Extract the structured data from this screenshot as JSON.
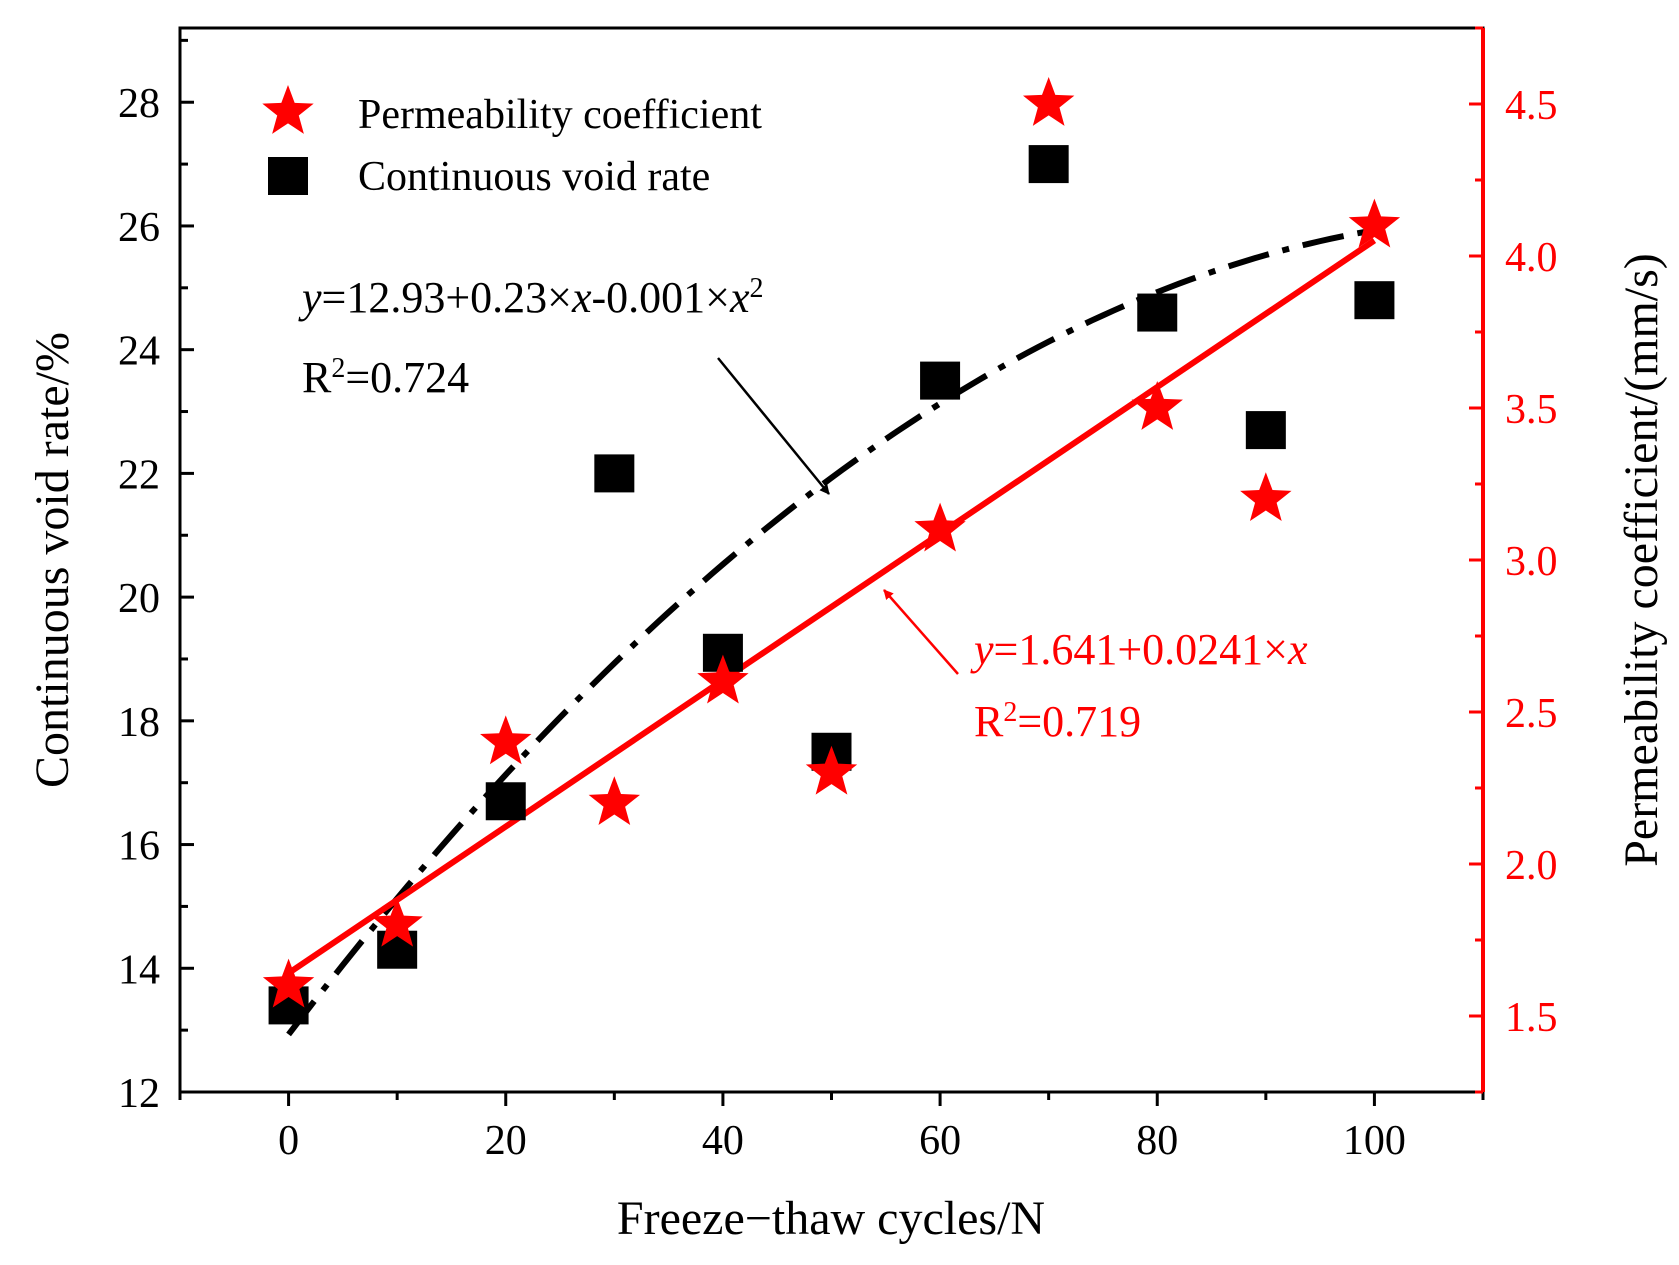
{
  "chart_data": {
    "type": "scatter",
    "xlabel": "Freeze−thaw cycles/N",
    "ylabel_left": "Continuous void rate/%",
    "ylabel_right": "Permeability coefficient/(mm/s)",
    "xlim": [
      -10,
      110
    ],
    "ylim_left": [
      12,
      29.2
    ],
    "ylim_right": [
      1.25,
      4.75
    ],
    "x_ticks": [
      0,
      20,
      40,
      60,
      80,
      100
    ],
    "y_left_ticks": [
      12,
      14,
      16,
      18,
      20,
      22,
      24,
      26,
      28
    ],
    "y_right_ticks": [
      "1.5",
      "2.0",
      "2.5",
      "3.0",
      "3.5",
      "4.0",
      "4.5"
    ],
    "grid": false,
    "legend_position": "top-left",
    "colors": {
      "left_axis": "#000000",
      "right_axis": "#ff0000",
      "void": "#000000",
      "permeability": "#ff0000"
    },
    "series": [
      {
        "name": "Permeability coefficient",
        "axis": "right",
        "marker": "star",
        "x": [
          0,
          10,
          20,
          30,
          40,
          50,
          60,
          70,
          80,
          90,
          100
        ],
        "y": [
          1.6,
          1.8,
          2.4,
          2.2,
          2.6,
          2.3,
          3.1,
          4.5,
          3.5,
          3.2,
          4.1
        ]
      },
      {
        "name": "Continuous void rate",
        "axis": "left",
        "marker": "square",
        "x": [
          0,
          10,
          20,
          30,
          40,
          50,
          60,
          70,
          80,
          90,
          100
        ],
        "y": [
          13.4,
          14.3,
          16.7,
          22.0,
          19.1,
          17.5,
          23.5,
          27.0,
          24.6,
          22.7,
          24.8
        ]
      }
    ],
    "fits": [
      {
        "series": "Continuous void rate",
        "style": "dash-dot",
        "intercept": 12.93,
        "b1": 0.23,
        "b2": -0.001,
        "x_range": [
          0,
          100
        ],
        "equation_prefix": "=12.93+0.23×",
        "equation_middle": "-0.001×",
        "r2": "=0.724"
      },
      {
        "series": "Permeability coefficient",
        "style": "solid",
        "intercept": 1.641,
        "b1": 0.0241,
        "x_range": [
          0,
          100
        ],
        "equation_prefix": "=1.641+0.0241×",
        "r2": "=0.719"
      }
    ]
  }
}
